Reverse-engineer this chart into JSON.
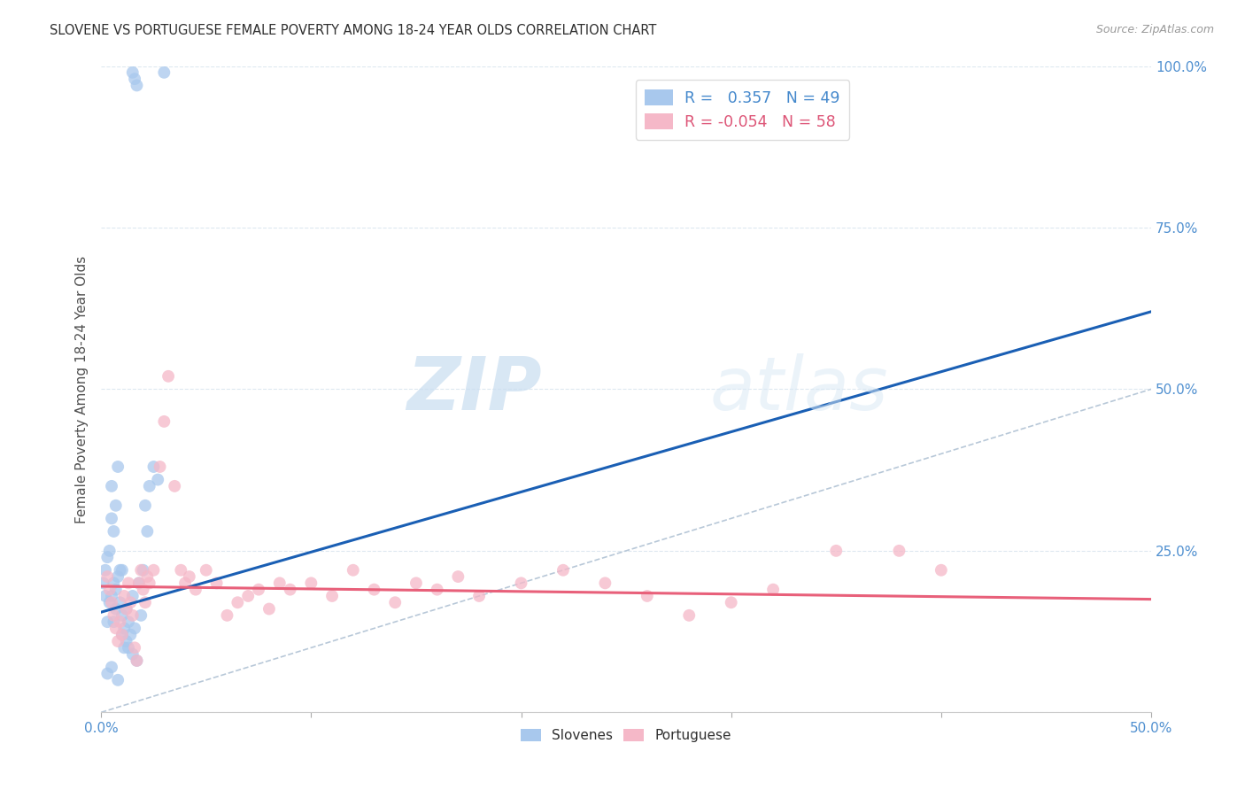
{
  "title": "SLOVENE VS PORTUGUESE FEMALE POVERTY AMONG 18-24 YEAR OLDS CORRELATION CHART",
  "source": "Source: ZipAtlas.com",
  "ylabel": "Female Poverty Among 18-24 Year Olds",
  "xlim": [
    0.0,
    0.5
  ],
  "ylim": [
    0.0,
    1.0
  ],
  "xticks": [
    0.0,
    0.1,
    0.2,
    0.3,
    0.4,
    0.5
  ],
  "xtick_labels": [
    "0.0%",
    "",
    "",
    "",
    "",
    "50.0%"
  ],
  "yticks": [
    0.0,
    0.25,
    0.5,
    0.75,
    1.0
  ],
  "ytick_labels": [
    "",
    "25.0%",
    "50.0%",
    "75.0%",
    "100.0%"
  ],
  "slovene_R": 0.357,
  "slovene_N": 49,
  "portuguese_R": -0.054,
  "portuguese_N": 58,
  "slovene_color": "#a8c8ed",
  "portuguese_color": "#f5b8c8",
  "slovene_line_color": "#1a5fb4",
  "portuguese_line_color": "#e8607a",
  "ref_line_color": "#b8c8d8",
  "watermark_zip": "ZIP",
  "watermark_atlas": "atlas",
  "background_color": "#ffffff",
  "grid_color": "#dde8f0",
  "slovene_dots": [
    [
      0.001,
      0.2
    ],
    [
      0.002,
      0.22
    ],
    [
      0.002,
      0.18
    ],
    [
      0.003,
      0.24
    ],
    [
      0.003,
      0.14
    ],
    [
      0.004,
      0.25
    ],
    [
      0.004,
      0.17
    ],
    [
      0.005,
      0.18
    ],
    [
      0.005,
      0.3
    ],
    [
      0.005,
      0.35
    ],
    [
      0.006,
      0.2
    ],
    [
      0.006,
      0.14
    ],
    [
      0.006,
      0.28
    ],
    [
      0.007,
      0.16
    ],
    [
      0.007,
      0.19
    ],
    [
      0.007,
      0.32
    ],
    [
      0.008,
      0.21
    ],
    [
      0.008,
      0.38
    ],
    [
      0.009,
      0.17
    ],
    [
      0.009,
      0.22
    ],
    [
      0.01,
      0.15
    ],
    [
      0.01,
      0.22
    ],
    [
      0.01,
      0.12
    ],
    [
      0.011,
      0.13
    ],
    [
      0.011,
      0.1
    ],
    [
      0.012,
      0.11
    ],
    [
      0.012,
      0.16
    ],
    [
      0.013,
      0.1
    ],
    [
      0.013,
      0.14
    ],
    [
      0.014,
      0.12
    ],
    [
      0.015,
      0.09
    ],
    [
      0.015,
      0.18
    ],
    [
      0.015,
      0.99
    ],
    [
      0.016,
      0.13
    ],
    [
      0.016,
      0.98
    ],
    [
      0.017,
      0.08
    ],
    [
      0.017,
      0.97
    ],
    [
      0.018,
      0.2
    ],
    [
      0.019,
      0.15
    ],
    [
      0.02,
      0.22
    ],
    [
      0.021,
      0.32
    ],
    [
      0.022,
      0.28
    ],
    [
      0.023,
      0.35
    ],
    [
      0.025,
      0.38
    ],
    [
      0.027,
      0.36
    ],
    [
      0.03,
      0.99
    ],
    [
      0.003,
      0.06
    ],
    [
      0.005,
      0.07
    ],
    [
      0.008,
      0.05
    ]
  ],
  "portuguese_dots": [
    [
      0.003,
      0.21
    ],
    [
      0.004,
      0.19
    ],
    [
      0.005,
      0.17
    ],
    [
      0.006,
      0.15
    ],
    [
      0.007,
      0.13
    ],
    [
      0.008,
      0.11
    ],
    [
      0.009,
      0.14
    ],
    [
      0.01,
      0.12
    ],
    [
      0.011,
      0.18
    ],
    [
      0.012,
      0.16
    ],
    [
      0.013,
      0.2
    ],
    [
      0.014,
      0.17
    ],
    [
      0.015,
      0.15
    ],
    [
      0.016,
      0.1
    ],
    [
      0.017,
      0.08
    ],
    [
      0.018,
      0.2
    ],
    [
      0.019,
      0.22
    ],
    [
      0.02,
      0.19
    ],
    [
      0.021,
      0.17
    ],
    [
      0.022,
      0.21
    ],
    [
      0.023,
      0.2
    ],
    [
      0.025,
      0.22
    ],
    [
      0.028,
      0.38
    ],
    [
      0.03,
      0.45
    ],
    [
      0.032,
      0.52
    ],
    [
      0.035,
      0.35
    ],
    [
      0.038,
      0.22
    ],
    [
      0.04,
      0.2
    ],
    [
      0.042,
      0.21
    ],
    [
      0.045,
      0.19
    ],
    [
      0.05,
      0.22
    ],
    [
      0.055,
      0.2
    ],
    [
      0.06,
      0.15
    ],
    [
      0.065,
      0.17
    ],
    [
      0.07,
      0.18
    ],
    [
      0.075,
      0.19
    ],
    [
      0.08,
      0.16
    ],
    [
      0.085,
      0.2
    ],
    [
      0.09,
      0.19
    ],
    [
      0.1,
      0.2
    ],
    [
      0.11,
      0.18
    ],
    [
      0.12,
      0.22
    ],
    [
      0.13,
      0.19
    ],
    [
      0.14,
      0.17
    ],
    [
      0.15,
      0.2
    ],
    [
      0.16,
      0.19
    ],
    [
      0.17,
      0.21
    ],
    [
      0.18,
      0.18
    ],
    [
      0.2,
      0.2
    ],
    [
      0.22,
      0.22
    ],
    [
      0.24,
      0.2
    ],
    [
      0.26,
      0.18
    ],
    [
      0.28,
      0.15
    ],
    [
      0.3,
      0.17
    ],
    [
      0.32,
      0.19
    ],
    [
      0.35,
      0.25
    ],
    [
      0.38,
      0.25
    ],
    [
      0.4,
      0.22
    ]
  ],
  "slovene_line_x": [
    0.0,
    0.5
  ],
  "slovene_line_y": [
    0.155,
    0.62
  ],
  "portuguese_line_x": [
    0.0,
    0.5
  ],
  "portuguese_line_y": [
    0.195,
    0.175
  ]
}
